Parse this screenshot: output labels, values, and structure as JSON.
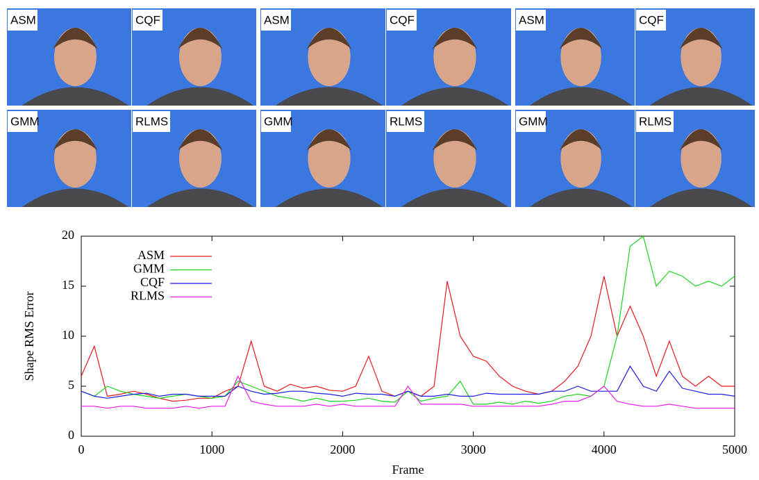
{
  "panels": [
    {
      "labels": [
        "ASM",
        "CQF",
        "GMM",
        "RLMS"
      ]
    },
    {
      "labels": [
        "ASM",
        "CQF",
        "GMM",
        "RLMS"
      ]
    },
    {
      "labels": [
        "ASM",
        "CQF",
        "GMM",
        "RLMS"
      ]
    }
  ],
  "chart_data": {
    "type": "line",
    "x_label": "Frame",
    "y_label": "Shape RMS Error",
    "x": [
      0,
      100,
      200,
      300,
      400,
      500,
      600,
      700,
      800,
      900,
      1000,
      1100,
      1200,
      1300,
      1400,
      1500,
      1600,
      1700,
      1800,
      1900,
      2000,
      2100,
      2200,
      2300,
      2400,
      2500,
      2600,
      2700,
      2800,
      2900,
      3000,
      3100,
      3200,
      3300,
      3400,
      3500,
      3600,
      3700,
      3800,
      3900,
      4000,
      4100,
      4200,
      4300,
      4400,
      4500,
      4600,
      4700,
      4800,
      4900,
      5000
    ],
    "series": [
      {
        "name": "ASM",
        "color": "#e8161b",
        "values": [
          6,
          9,
          4,
          4.2,
          4.5,
          4.2,
          3.8,
          3.5,
          3.6,
          3.8,
          3.8,
          4.5,
          5,
          9.5,
          5,
          4.5,
          5.2,
          4.8,
          5,
          4.6,
          4.5,
          5,
          8,
          4.5,
          4,
          4.5,
          4,
          5,
          15.5,
          10,
          8,
          7.5,
          6,
          5,
          4.5,
          4.2,
          4.5,
          5.5,
          7,
          10,
          16,
          10,
          13,
          10,
          6,
          9.5,
          6,
          5,
          6,
          5,
          5
        ]
      },
      {
        "name": "GMM",
        "color": "#19d219",
        "values": [
          4.5,
          4,
          5,
          4.5,
          4.2,
          4,
          3.8,
          4,
          4.2,
          4,
          3.8,
          4,
          5.5,
          5,
          4.5,
          4,
          3.8,
          3.5,
          3.8,
          3.5,
          3.5,
          3.6,
          3.8,
          3.5,
          3.4,
          4.5,
          3.5,
          3.8,
          4,
          5.5,
          3.2,
          3.2,
          3.4,
          3.2,
          3.5,
          3.3,
          3.5,
          4,
          4.2,
          4,
          5,
          10,
          19,
          20,
          15,
          16.5,
          16,
          15,
          15.5,
          15,
          16
        ]
      },
      {
        "name": "CQF",
        "color": "#1a1ae0",
        "values": [
          4.5,
          4,
          3.8,
          4,
          4.2,
          4.3,
          4,
          4.2,
          4.2,
          4,
          4,
          4,
          5,
          4.5,
          4.2,
          4.3,
          4.5,
          4.5,
          4.3,
          4.2,
          4,
          4.3,
          4.2,
          4.2,
          4,
          4.5,
          4,
          4,
          4.2,
          4,
          4,
          4.3,
          4.2,
          4.2,
          4.2,
          4.2,
          4.5,
          4.5,
          5,
          4.5,
          4.5,
          4.5,
          7,
          5,
          4.5,
          6.5,
          4.8,
          4.5,
          4.2,
          4.2,
          4
        ]
      },
      {
        "name": "RLMS",
        "color": "#e51be5",
        "values": [
          3,
          3,
          2.8,
          3,
          3,
          2.8,
          2.8,
          2.8,
          3,
          2.8,
          3,
          3,
          6,
          3.5,
          3.2,
          3,
          3,
          3,
          3.2,
          3,
          3.2,
          3,
          3,
          3,
          3,
          5,
          3.2,
          3.2,
          3.2,
          3.2,
          3,
          3,
          3,
          3,
          3,
          3,
          3.2,
          3.5,
          3.5,
          4,
          5,
          3.5,
          3.2,
          3,
          3,
          3.2,
          3,
          2.8,
          2.8,
          2.8,
          2.8
        ]
      }
    ],
    "xlim": [
      0,
      5000
    ],
    "xticks": [
      0,
      1000,
      2000,
      3000,
      4000,
      5000
    ],
    "ylim": [
      0,
      20
    ],
    "yticks": [
      0,
      5,
      10,
      15,
      20
    ],
    "legend": "top-left"
  }
}
